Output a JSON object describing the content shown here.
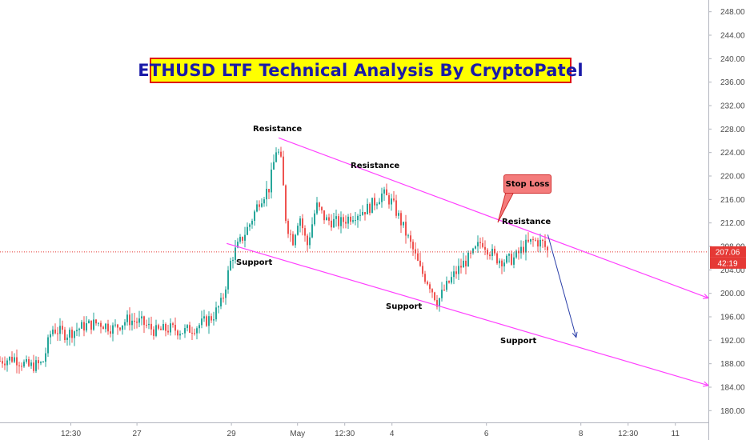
{
  "chart_data": {
    "type": "candlestick",
    "title": "ETHUSD LTF Technical Analysis By CryptoPatel",
    "colors": {
      "up": "#26a69a",
      "down": "#ef5350",
      "trendline": "#ff40ff",
      "arrow": "#2b3fa8",
      "price_line": "#e53935",
      "title_bg": "#ffff00",
      "title_border": "#e01010",
      "title_text": "#1a1aa8",
      "stop_loss_bg": "#f47c7c"
    },
    "y_axis": {
      "range": [
        178,
        250
      ],
      "ticks": [
        "180.00",
        "184.00",
        "188.00",
        "192.00",
        "196.00",
        "200.00",
        "204.00",
        "208.00",
        "212.00",
        "216.00",
        "220.00",
        "224.00",
        "228.00",
        "232.00",
        "236.00",
        "240.00",
        "244.00",
        "248.00"
      ]
    },
    "x_axis": {
      "ticks": [
        {
          "label": "12:30",
          "x": 0.3
        },
        {
          "label": "27",
          "x": 1.0
        },
        {
          "label": "29",
          "x": 2.0
        },
        {
          "label": "May",
          "x": 2.7
        },
        {
          "label": "12:30",
          "x": 3.2
        },
        {
          "label": "4",
          "x": 3.7
        },
        {
          "label": "6",
          "x": 4.7
        },
        {
          "label": "8",
          "x": 5.7
        },
        {
          "label": "12:30",
          "x": 6.2
        },
        {
          "label": "11",
          "x": 6.7
        }
      ],
      "range": [
        -0.45,
        7.05
      ]
    },
    "current_price": {
      "value": 207.06,
      "label": "207.06",
      "countdown": "42:19"
    },
    "price_anchors": [
      [
        -0.45,
        188.5
      ],
      [
        -0.3,
        189.0
      ],
      [
        -0.15,
        187.5
      ],
      [
        0.0,
        188.0
      ],
      [
        0.1,
        194.0
      ],
      [
        0.25,
        193.0
      ],
      [
        0.45,
        194.5
      ],
      [
        0.6,
        195.0
      ],
      [
        0.75,
        194.0
      ],
      [
        0.9,
        195.5
      ],
      [
        1.05,
        195.0
      ],
      [
        1.2,
        193.5
      ],
      [
        1.35,
        194.0
      ],
      [
        1.5,
        193.5
      ],
      [
        1.65,
        194.5
      ],
      [
        1.8,
        196.0
      ],
      [
        1.9,
        198.5
      ],
      [
        2.0,
        206.0
      ],
      [
        2.1,
        209.0
      ],
      [
        2.2,
        212.0
      ],
      [
        2.3,
        216.0
      ],
      [
        2.4,
        218.0
      ],
      [
        2.48,
        225.0
      ],
      [
        2.53,
        222.0
      ],
      [
        2.58,
        212.0
      ],
      [
        2.65,
        209.0
      ],
      [
        2.72,
        213.5
      ],
      [
        2.8,
        208.0
      ],
      [
        2.9,
        215.0
      ],
      [
        3.0,
        212.5
      ],
      [
        3.15,
        212.0
      ],
      [
        3.3,
        213.5
      ],
      [
        3.45,
        214.5
      ],
      [
        3.6,
        217.0
      ],
      [
        3.7,
        215.5
      ],
      [
        3.8,
        212.0
      ],
      [
        3.92,
        207.5
      ],
      [
        4.0,
        204.0
      ],
      [
        4.1,
        201.5
      ],
      [
        4.18,
        198.5
      ],
      [
        4.25,
        200.5
      ],
      [
        4.35,
        203.0
      ],
      [
        4.45,
        205.0
      ],
      [
        4.55,
        206.5
      ],
      [
        4.65,
        209.0
      ],
      [
        4.72,
        207.5
      ],
      [
        4.8,
        206.0
      ],
      [
        4.9,
        205.5
      ],
      [
        5.0,
        206.0
      ],
      [
        5.1,
        208.0
      ],
      [
        5.2,
        209.0
      ],
      [
        5.3,
        208.5
      ],
      [
        5.35,
        207.06
      ]
    ],
    "trendlines": [
      {
        "name": "resistance",
        "from": [
          2.5,
          226.5
        ],
        "to": [
          7.05,
          199.2
        ]
      },
      {
        "name": "support",
        "from": [
          1.95,
          208.5
        ],
        "to": [
          7.05,
          184.3
        ]
      }
    ],
    "projection_arrow": {
      "from": [
        5.35,
        210.0
      ],
      "to": [
        5.65,
        192.5
      ]
    }
  },
  "annotations": {
    "stop_loss": "Stop Loss",
    "resistance_1": "Resistance",
    "resistance_2": "Resistance",
    "resistance_3": "Resistance",
    "support_1": "Support",
    "support_2": "Support",
    "support_3": "Support"
  }
}
